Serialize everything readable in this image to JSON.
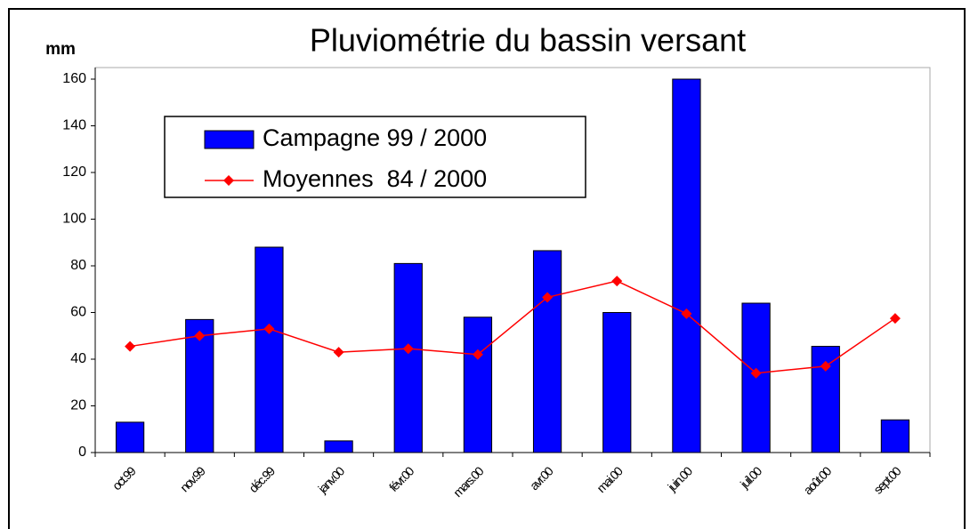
{
  "chart_data": {
    "type": "bar",
    "title": "Pluviométrie du bassin versant",
    "y_label": "mm",
    "categories": [
      "oct.99",
      "nov.99",
      "déc.99",
      "janv.00",
      "févr.00",
      "mars.00",
      "avr.00",
      "mai.00",
      "juin.00",
      "juil.00",
      "août.00",
      "sept.00"
    ],
    "series": [
      {
        "name": "Campagne 99 / 2000",
        "type": "bar",
        "color": "#0000ff",
        "values": [
          13,
          57,
          88,
          5,
          81,
          58,
          86.5,
          60,
          160,
          64,
          45.5,
          14
        ]
      },
      {
        "name": "Moyennes  84 / 2000",
        "type": "line",
        "color": "#ff0000",
        "values": [
          45.5,
          50,
          53,
          43,
          44.5,
          42,
          66.5,
          73.5,
          59.5,
          34,
          37,
          57.5
        ]
      }
    ],
    "ylim": [
      0,
      160
    ],
    "yticks": [
      0,
      20,
      40,
      60,
      80,
      100,
      120,
      140,
      160
    ],
    "grid": false,
    "legend": "upper left"
  }
}
